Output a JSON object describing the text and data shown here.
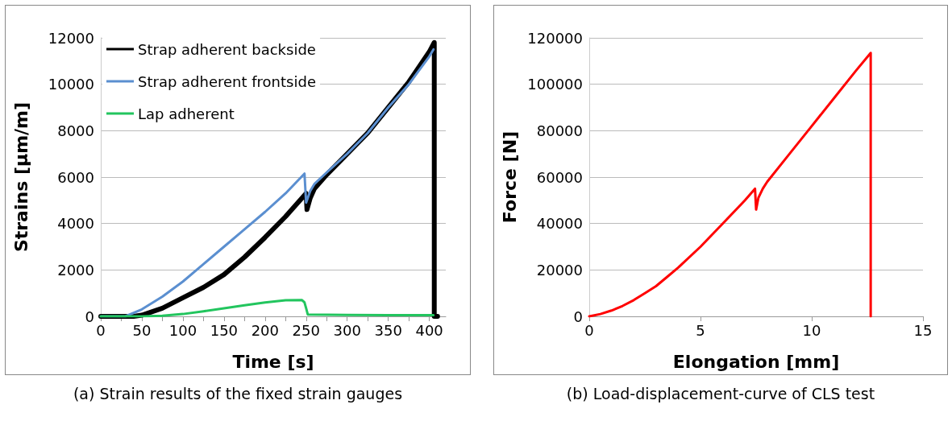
{
  "chart_data": [
    {
      "type": "line",
      "xlabel": "Time [s]",
      "ylabel": "Strains [µm/m]",
      "annotations": [
        "(a) Strain results of the fixed strain gauges"
      ],
      "xlim": [
        0,
        420
      ],
      "xticks": [
        0,
        {
          "value": 25,
          "label": null
        },
        50,
        {
          "value": 75,
          "label": null
        },
        100,
        {
          "value": 125,
          "label": null
        },
        150,
        {
          "value": 175,
          "label": null
        },
        200,
        {
          "value": 225,
          "label": null
        },
        250,
        {
          "value": 275,
          "label": null
        },
        300,
        {
          "value": 325,
          "label": null
        },
        350,
        {
          "value": 375,
          "label": null
        },
        400
      ],
      "ylim": [
        0,
        12000
      ],
      "yticks": [
        0,
        2000,
        4000,
        6000,
        8000,
        10000,
        12000
      ],
      "grid": "y",
      "legend": "top left",
      "marker": "none",
      "line_style": "solid",
      "series": [
        {
          "name": "Strap adherent backside",
          "color": "#000000",
          "x": [
            0,
            40,
            50,
            75,
            100,
            125,
            150,
            175,
            200,
            225,
            240,
            250,
            251,
            255,
            260,
            275,
            300,
            325,
            350,
            375,
            400,
            406,
            406,
            410
          ],
          "values": [
            0,
            0,
            50,
            350,
            800,
            1250,
            1800,
            2550,
            3400,
            4300,
            4900,
            5300,
            4600,
            5100,
            5500,
            6100,
            7000,
            7900,
            9000,
            10100,
            11400,
            11800,
            0,
            0
          ]
        },
        {
          "name": "Strap adherent frontside",
          "color": "#5b8fd0",
          "x": [
            0,
            30,
            50,
            75,
            100,
            125,
            150,
            175,
            200,
            225,
            248,
            250,
            255,
            260,
            275,
            300,
            325,
            350,
            375,
            400,
            405
          ],
          "values": [
            0,
            0,
            300,
            850,
            1500,
            2250,
            3000,
            3750,
            4500,
            5300,
            6150,
            4900,
            5400,
            5700,
            6200,
            7000,
            7900,
            9000,
            10000,
            11200,
            11500
          ]
        },
        {
          "name": "Lap adherent",
          "color": "#22c55e",
          "x": [
            0,
            50,
            75,
            100,
            125,
            150,
            175,
            200,
            225,
            245,
            248,
            250,
            252,
            300,
            350,
            405
          ],
          "values": [
            0,
            0,
            30,
            100,
            220,
            350,
            480,
            600,
            690,
            700,
            600,
            350,
            80,
            60,
            50,
            50
          ]
        }
      ]
    },
    {
      "type": "line",
      "xlabel": "Elongation [mm]",
      "ylabel": "Force [N]",
      "annotations": [
        "(b) Load-displacement-curve of CLS test"
      ],
      "xlim": [
        0,
        15
      ],
      "xticks": [
        0,
        5,
        10,
        15
      ],
      "ylim": [
        0,
        120000
      ],
      "yticks": [
        0,
        20000,
        40000,
        60000,
        80000,
        100000,
        120000
      ],
      "grid": "y",
      "marker": "none",
      "line_style": "solid",
      "series": [
        {
          "color": "#ff0000",
          "x": [
            0,
            0.5,
            1,
            1.5,
            2,
            2.5,
            3,
            3.5,
            4,
            5,
            6,
            7,
            7.45,
            7.5,
            7.6,
            7.8,
            8,
            9,
            10,
            11,
            12,
            12.65,
            12.65
          ],
          "values": [
            0,
            1000,
            2500,
            4500,
            7000,
            10000,
            13000,
            17000,
            21000,
            30000,
            40000,
            50000,
            55000,
            46000,
            51000,
            55000,
            58000,
            70000,
            82000,
            94000,
            106000,
            113500,
            0
          ]
        }
      ]
    }
  ]
}
